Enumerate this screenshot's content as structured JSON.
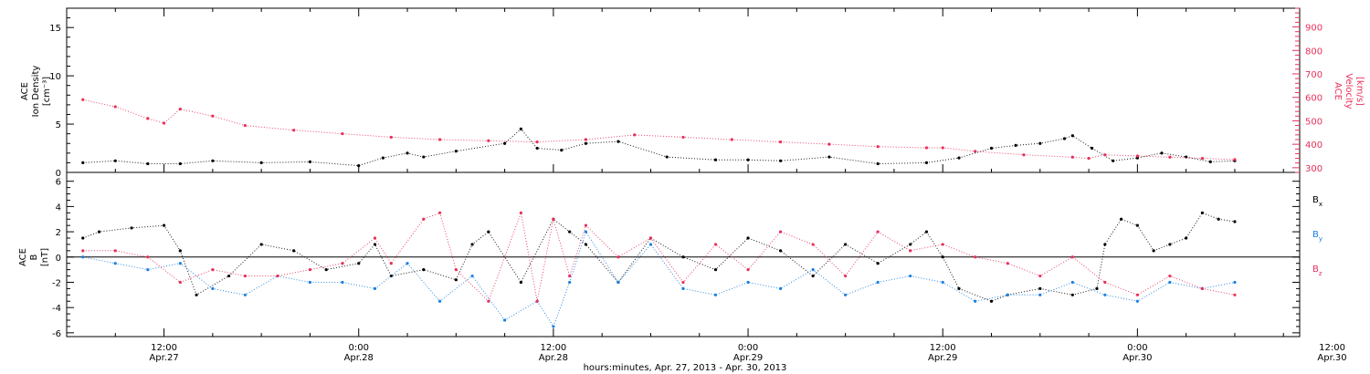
{
  "chart_data": [
    {
      "type": "scatter",
      "panel": "top",
      "xlabel": "hours:minutes, Apr. 27, 2013 - Apr. 30, 2013",
      "ylabel_left": [
        "ACE",
        "Ion Density",
        "[cm⁻³]"
      ],
      "ylabel_right": [
        "ACE",
        "Velocity",
        "[km/s]"
      ],
      "ylim_left": [
        0,
        17
      ],
      "ylim_right": [
        280,
        980
      ],
      "yticks_left": [
        0,
        5,
        10,
        15
      ],
      "yticks_right": [
        300,
        400,
        500,
        600,
        700,
        800,
        900
      ],
      "right_axis_color": "#e8305a",
      "series": [
        {
          "color": "#000000",
          "axis": "left",
          "x": [
            7,
            9,
            11,
            13,
            15,
            18,
            21,
            24,
            25.5,
            27,
            28,
            30,
            33,
            34,
            35,
            36.5,
            38,
            40,
            43,
            46,
            48,
            50,
            53,
            56,
            59,
            61,
            63,
            64.5,
            66,
            67.5,
            68,
            69.2,
            70.5,
            72,
            73.5,
            75,
            76.5,
            78
          ],
          "y": [
            1.0,
            1.2,
            0.9,
            0.9,
            1.2,
            1.0,
            1.1,
            0.7,
            1.5,
            2.0,
            1.6,
            2.2,
            3.0,
            4.5,
            2.5,
            2.3,
            3.0,
            3.2,
            1.6,
            1.3,
            1.3,
            1.2,
            1.6,
            0.9,
            1.0,
            1.5,
            2.5,
            2.8,
            3.0,
            3.5,
            3.8,
            2.5,
            1.2,
            1.5,
            2.0,
            1.6,
            1.1,
            1.2
          ]
        },
        {
          "color": "#e8305a",
          "axis": "right",
          "x": [
            7,
            9,
            11,
            12,
            13,
            15,
            17,
            20,
            23,
            26,
            29,
            32,
            35,
            38,
            41,
            44,
            47,
            50,
            53,
            56,
            59,
            60,
            62,
            65,
            68,
            69,
            70,
            72,
            74,
            76,
            78
          ],
          "y": [
            590,
            560,
            510,
            490,
            550,
            520,
            480,
            460,
            445,
            430,
            420,
            415,
            410,
            420,
            440,
            430,
            420,
            410,
            400,
            390,
            385,
            385,
            370,
            355,
            345,
            340,
            355,
            350,
            345,
            340,
            335
          ]
        }
      ]
    },
    {
      "type": "scatter",
      "panel": "bottom",
      "xlabel": "hours:minutes, Apr. 27, 2013 - Apr. 30, 2013",
      "ylabel": [
        "ACE",
        "B",
        "[nT]"
      ],
      "ylim": [
        -6.3,
        6.7
      ],
      "yticks": [
        -6,
        -4,
        -2,
        0,
        2,
        4,
        6
      ],
      "zero_line": true,
      "legend_placement": "right",
      "series": [
        {
          "name": "Bx",
          "color": "#000000",
          "x": [
            7,
            8,
            10,
            12,
            13,
            14,
            16,
            18,
            20,
            22,
            24,
            25,
            26,
            28,
            30,
            31,
            32,
            34,
            36,
            37,
            38,
            40,
            42,
            44,
            46,
            48,
            50,
            52,
            54,
            56,
            58,
            59,
            60,
            61,
            63,
            64,
            66,
            68,
            69.5,
            70,
            71,
            72,
            73,
            74,
            75,
            76,
            77,
            78
          ],
          "y": [
            1.5,
            2.0,
            2.3,
            2.5,
            0.5,
            -3.0,
            -1.5,
            1.0,
            0.5,
            -1.0,
            -0.5,
            1.0,
            -1.5,
            -1.0,
            -1.8,
            1.0,
            2.0,
            -2.0,
            3.0,
            2.0,
            1.0,
            -2.0,
            1.5,
            0.0,
            -1.0,
            1.5,
            0.5,
            -1.5,
            1.0,
            -0.5,
            1.0,
            2.0,
            0.0,
            -2.5,
            -3.5,
            -3.0,
            -2.5,
            -3.0,
            -2.5,
            1.0,
            3.0,
            2.5,
            0.5,
            1.0,
            1.5,
            3.5,
            3.0,
            2.8
          ]
        },
        {
          "name": "By",
          "color": "#1a7fe0",
          "x": [
            7,
            9,
            11,
            13,
            15,
            17,
            19,
            21,
            23,
            25,
            27,
            29,
            31,
            33,
            35,
            36,
            37,
            38,
            40,
            42,
            44,
            46,
            48,
            50,
            52,
            54,
            56,
            58,
            60,
            62,
            64,
            66,
            68,
            70,
            72,
            74,
            76,
            78
          ],
          "y": [
            0.0,
            -0.5,
            -1.0,
            -0.5,
            -2.5,
            -3.0,
            -1.5,
            -2.0,
            -2.0,
            -2.5,
            -0.5,
            -3.5,
            -1.5,
            -5.0,
            -3.5,
            -5.5,
            -2.0,
            2.0,
            -2.0,
            1.0,
            -2.5,
            -3.0,
            -2.0,
            -2.5,
            -1.0,
            -3.0,
            -2.0,
            -1.5,
            -2.0,
            -3.5,
            -3.0,
            -3.0,
            -2.0,
            -3.0,
            -3.5,
            -2.0,
            -2.5,
            -2.0
          ]
        },
        {
          "name": "Bz",
          "color": "#e8305a",
          "x": [
            7,
            9,
            11,
            13,
            15,
            17,
            19,
            21,
            23,
            25,
            26,
            28,
            29,
            30,
            32,
            34,
            35,
            36,
            37,
            38,
            40,
            42,
            44,
            46,
            48,
            50,
            52,
            54,
            56,
            58,
            60,
            62,
            64,
            66,
            68,
            70,
            72,
            74,
            76,
            78
          ],
          "y": [
            0.5,
            0.5,
            0.0,
            -2.0,
            -1.0,
            -1.5,
            -1.5,
            -1.0,
            -0.5,
            1.5,
            -0.5,
            3.0,
            3.5,
            -1.0,
            -3.5,
            3.5,
            -3.5,
            3.0,
            -1.5,
            2.5,
            0.0,
            1.5,
            -2.0,
            1.0,
            -1.0,
            2.0,
            1.0,
            -1.5,
            2.0,
            0.5,
            1.0,
            0.0,
            -0.5,
            -1.5,
            0.0,
            -2.0,
            -3.0,
            -1.5,
            -2.5,
            -3.0
          ]
        }
      ]
    }
  ],
  "x_axis": {
    "range_hours": [
      6,
      82
    ],
    "ticks": [
      {
        "h": 12,
        "time": "12:00",
        "date": "Apr.27"
      },
      {
        "h": 24,
        "time": "0:00",
        "date": "Apr.28"
      },
      {
        "h": 36,
        "time": "12:00",
        "date": "Apr.28"
      },
      {
        "h": 48,
        "time": "0:00",
        "date": "Apr.29"
      },
      {
        "h": 60,
        "time": "12:00",
        "date": "Apr.29"
      },
      {
        "h": 72,
        "time": "0:00",
        "date": "Apr.30"
      },
      {
        "h": 84,
        "time": "12:00",
        "date": "Apr.30"
      }
    ]
  }
}
